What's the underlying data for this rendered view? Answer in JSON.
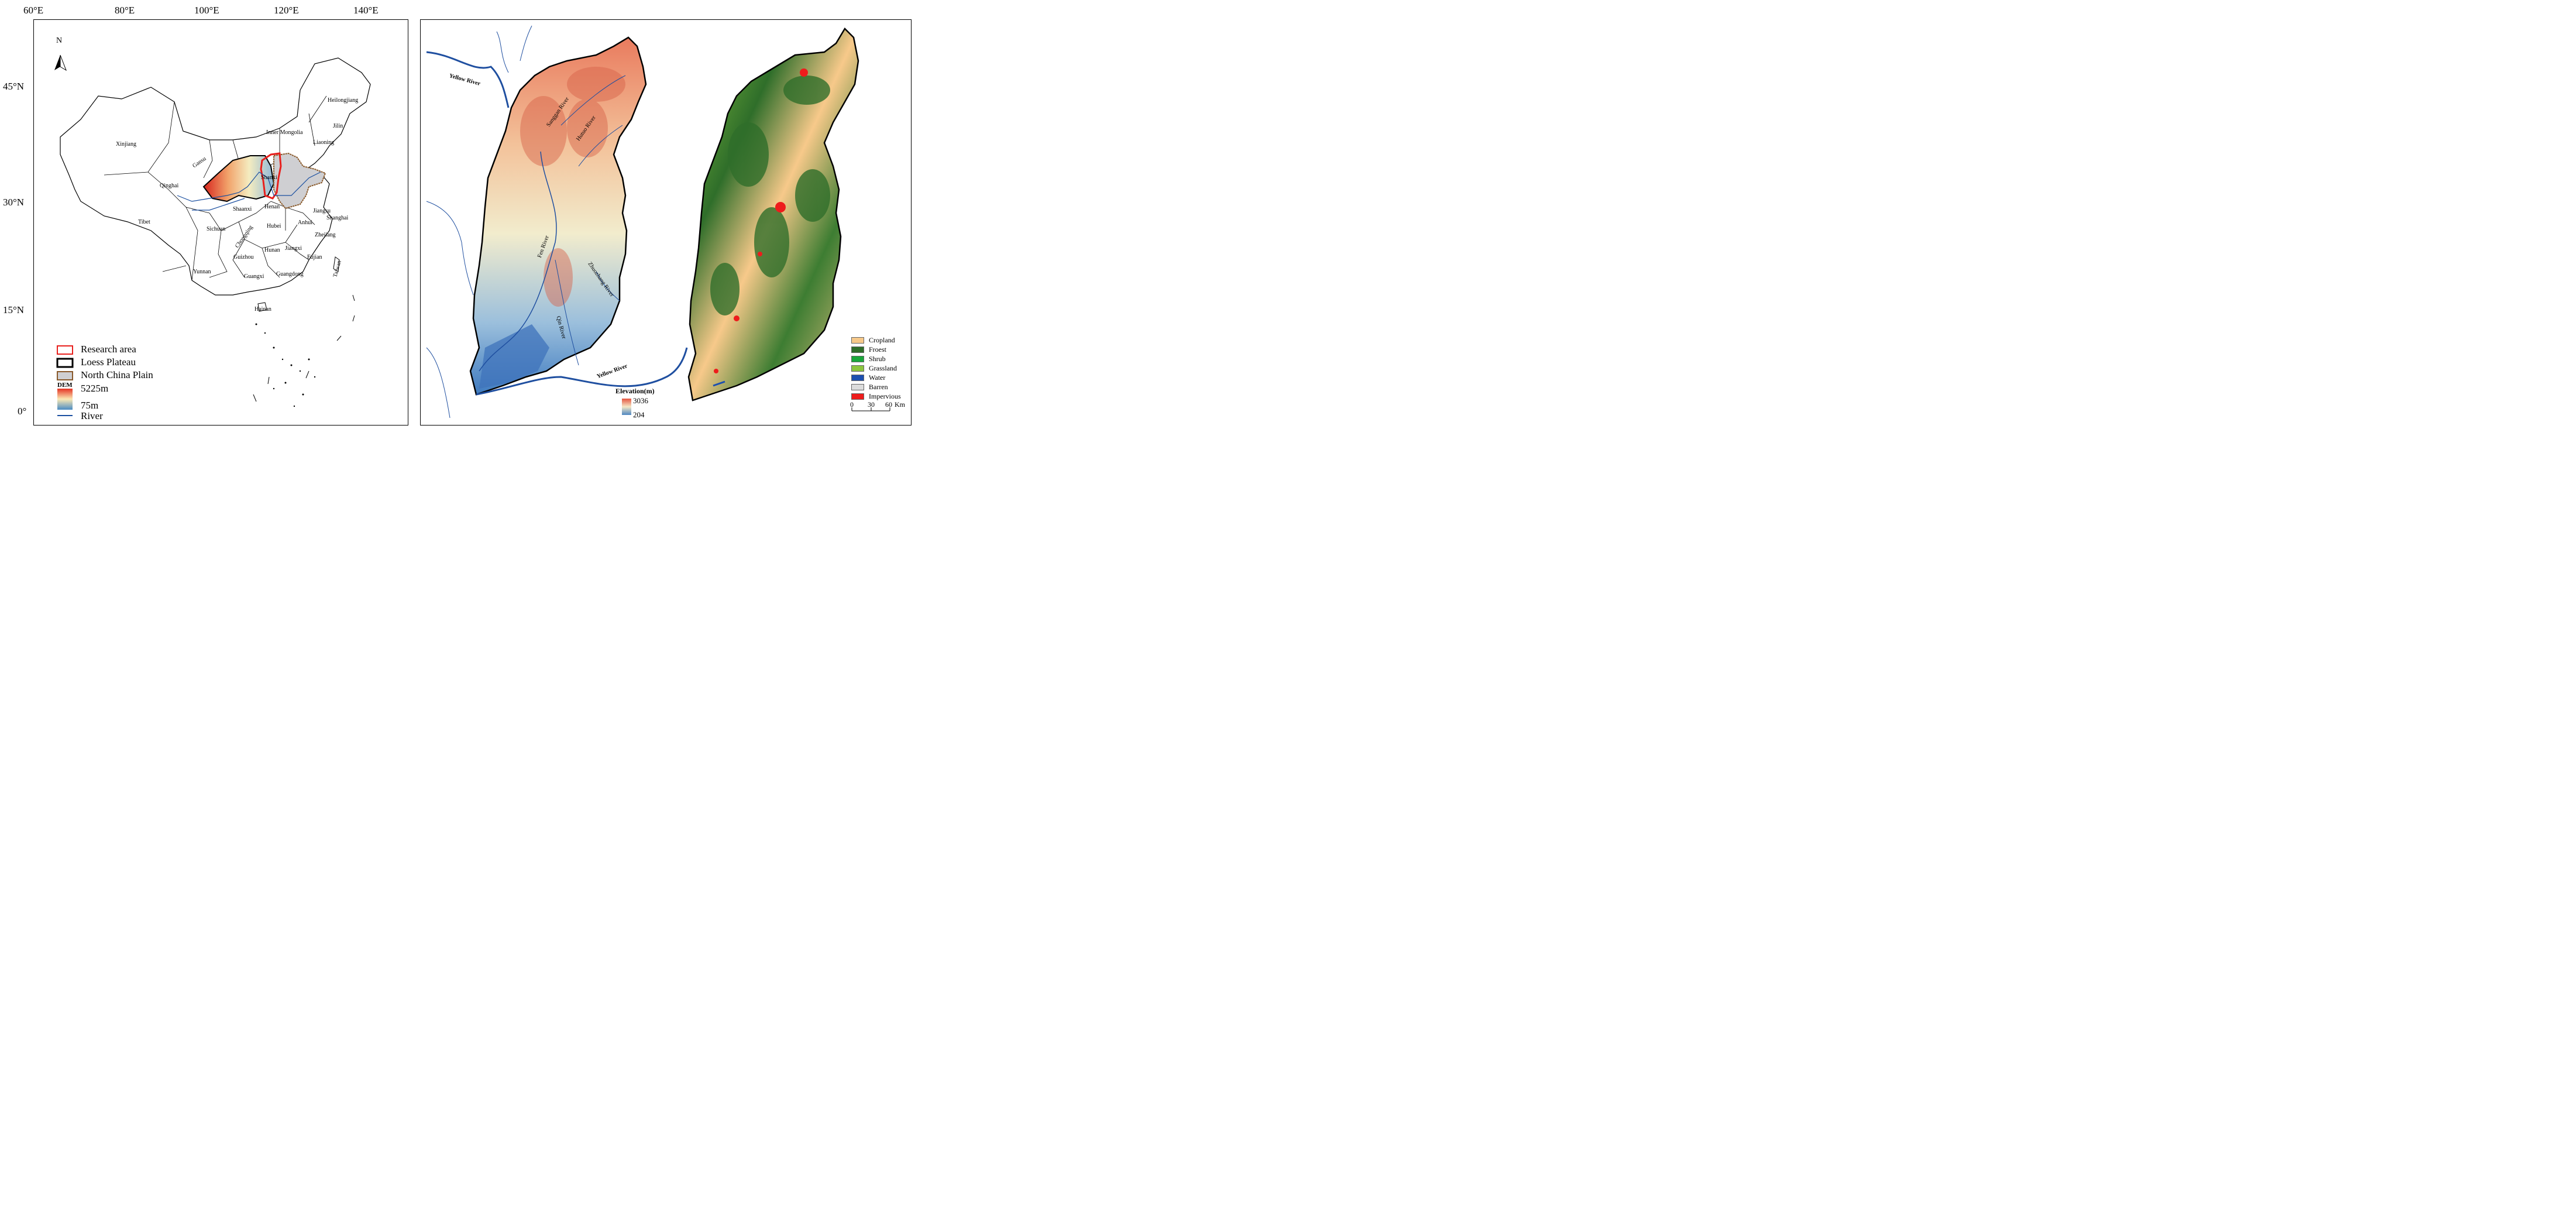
{
  "left_map": {
    "lon_ticks": [
      "60°E",
      "80°E",
      "100°E",
      "120°E",
      "140°E"
    ],
    "lat_ticks": [
      "45°N",
      "30°N",
      "15°N",
      "0°"
    ],
    "north_label": "N",
    "provinces": [
      "Xinjiang",
      "Heilongjiang",
      "Jilin",
      "Inner Mongolia",
      "Liaoning",
      "Gansu",
      "Qinghai",
      "Shanxi",
      "Tibet",
      "Shaanxi",
      "Henan",
      "Jiangsu",
      "Shanghai",
      "Sichuan",
      "Hubei",
      "Anhui",
      "Chongqing",
      "Zhejiang",
      "Hunan",
      "Jiangxi",
      "Guizhou",
      "Fujian",
      "Yunnan",
      "Guangxi",
      "Guangdong",
      "Taiwan",
      "Hainan"
    ],
    "legend": {
      "research_area": "Research area",
      "loess_plateau": "Loess Plateau",
      "north_china_plain": "North China Plain",
      "dem_title": "DEM",
      "dem_max": "5225m",
      "dem_min": "75m",
      "river": "River"
    },
    "colors": {
      "research_area": "#e8201d",
      "loess": "#000000",
      "ncp_border": "#8a5a2b",
      "ncp_fill": "#cfcfd2",
      "river": "#1a4fa0"
    }
  },
  "right_map": {
    "rivers": [
      "Yellow River",
      "Sanggan River",
      "Hutuo River",
      "Fen River",
      "Zhuozhang River",
      "Qin River",
      "Yellow River"
    ],
    "elevation": {
      "title": "Elevation(m)",
      "max": "3036",
      "min": "204"
    },
    "landcover_legend": [
      {
        "label": "Cropland",
        "color": "#f7c98a"
      },
      {
        "label": "Froest",
        "color": "#2f6e2a"
      },
      {
        "label": "Shrub",
        "color": "#1aa83b"
      },
      {
        "label": "Grassland",
        "color": "#8cc63f"
      },
      {
        "label": "Water",
        "color": "#1c4fb0"
      },
      {
        "label": "Barren",
        "color": "#dcdcdc"
      },
      {
        "label": "Impervious",
        "color": "#ee1c1c"
      }
    ],
    "scale_bar": {
      "labels": [
        "0",
        "30",
        "60"
      ],
      "unit": "Km"
    }
  }
}
